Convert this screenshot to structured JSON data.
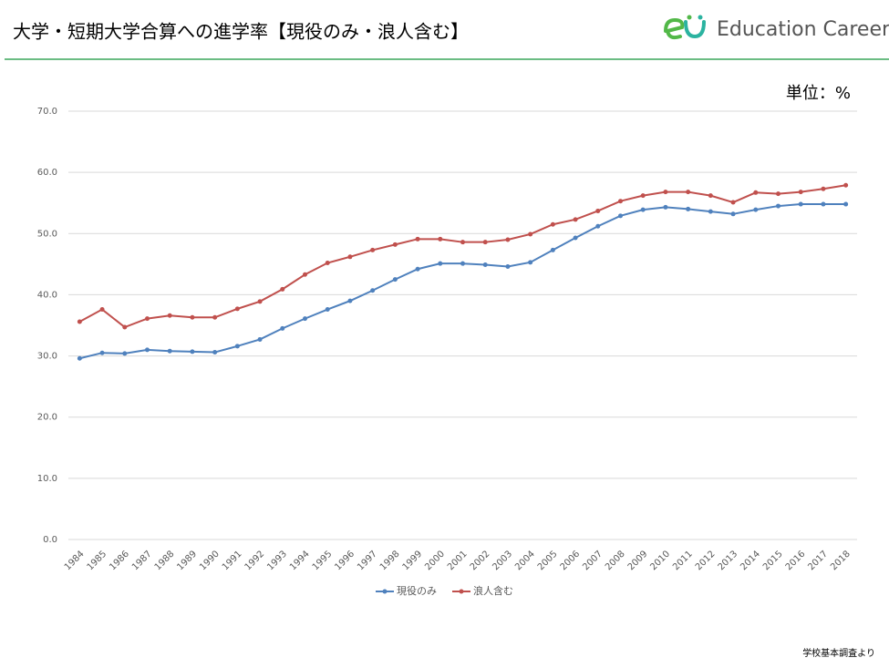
{
  "header": {
    "logo": "Education Career"
  },
  "chart_data": {
    "type": "line",
    "title": "大学・短期大学合算への進学率【現役のみ・浪人含む】",
    "annotations": [
      "単位：%",
      "学校基本調査より"
    ],
    "categories": [
      "1984",
      "1985",
      "1986",
      "1987",
      "1988",
      "1989",
      "1990",
      "1991",
      "1992",
      "1993",
      "1994",
      "1995",
      "1996",
      "1997",
      "1998",
      "1999",
      "2000",
      "2001",
      "2002",
      "2003",
      "2004",
      "2005",
      "2006",
      "2007",
      "2008",
      "2009",
      "2010",
      "2011",
      "2012",
      "2013",
      "2014",
      "2015",
      "2016",
      "2017",
      "2018"
    ],
    "series": [
      {
        "name": "現役のみ",
        "color": "#4f81bd",
        "values": [
          29.6,
          30.5,
          30.4,
          31.0,
          30.8,
          30.7,
          30.6,
          31.6,
          32.7,
          34.5,
          36.1,
          37.6,
          39.0,
          40.7,
          42.5,
          44.2,
          45.1,
          45.1,
          44.9,
          44.6,
          45.3,
          47.3,
          49.3,
          51.2,
          52.9,
          53.9,
          54.3,
          54.0,
          53.6,
          53.2,
          53.9,
          54.5,
          54.8,
          54.8,
          54.8
        ]
      },
      {
        "name": "浪人含む",
        "color": "#c0504d",
        "values": [
          35.6,
          37.6,
          34.7,
          36.1,
          36.6,
          36.3,
          36.3,
          37.7,
          38.9,
          40.9,
          43.3,
          45.2,
          46.2,
          47.3,
          48.2,
          49.1,
          49.1,
          48.6,
          48.6,
          49.0,
          49.9,
          51.5,
          52.3,
          53.7,
          55.3,
          56.2,
          56.8,
          56.8,
          56.2,
          55.1,
          56.7,
          56.5,
          56.8,
          57.3,
          57.9
        ]
      }
    ],
    "ylim": [
      0,
      70
    ],
    "yticks": [
      {
        "value": 0,
        "label": "0.0"
      },
      {
        "value": 10,
        "label": "10.0"
      },
      {
        "value": 20,
        "label": "20.0"
      },
      {
        "value": 30,
        "label": "30.0"
      },
      {
        "value": 40,
        "label": "40.0"
      },
      {
        "value": 50,
        "label": "50.0"
      },
      {
        "value": 60,
        "label": "60.0"
      },
      {
        "value": 70,
        "label": "70.0"
      }
    ],
    "grid": true,
    "legend": "bottom"
  }
}
